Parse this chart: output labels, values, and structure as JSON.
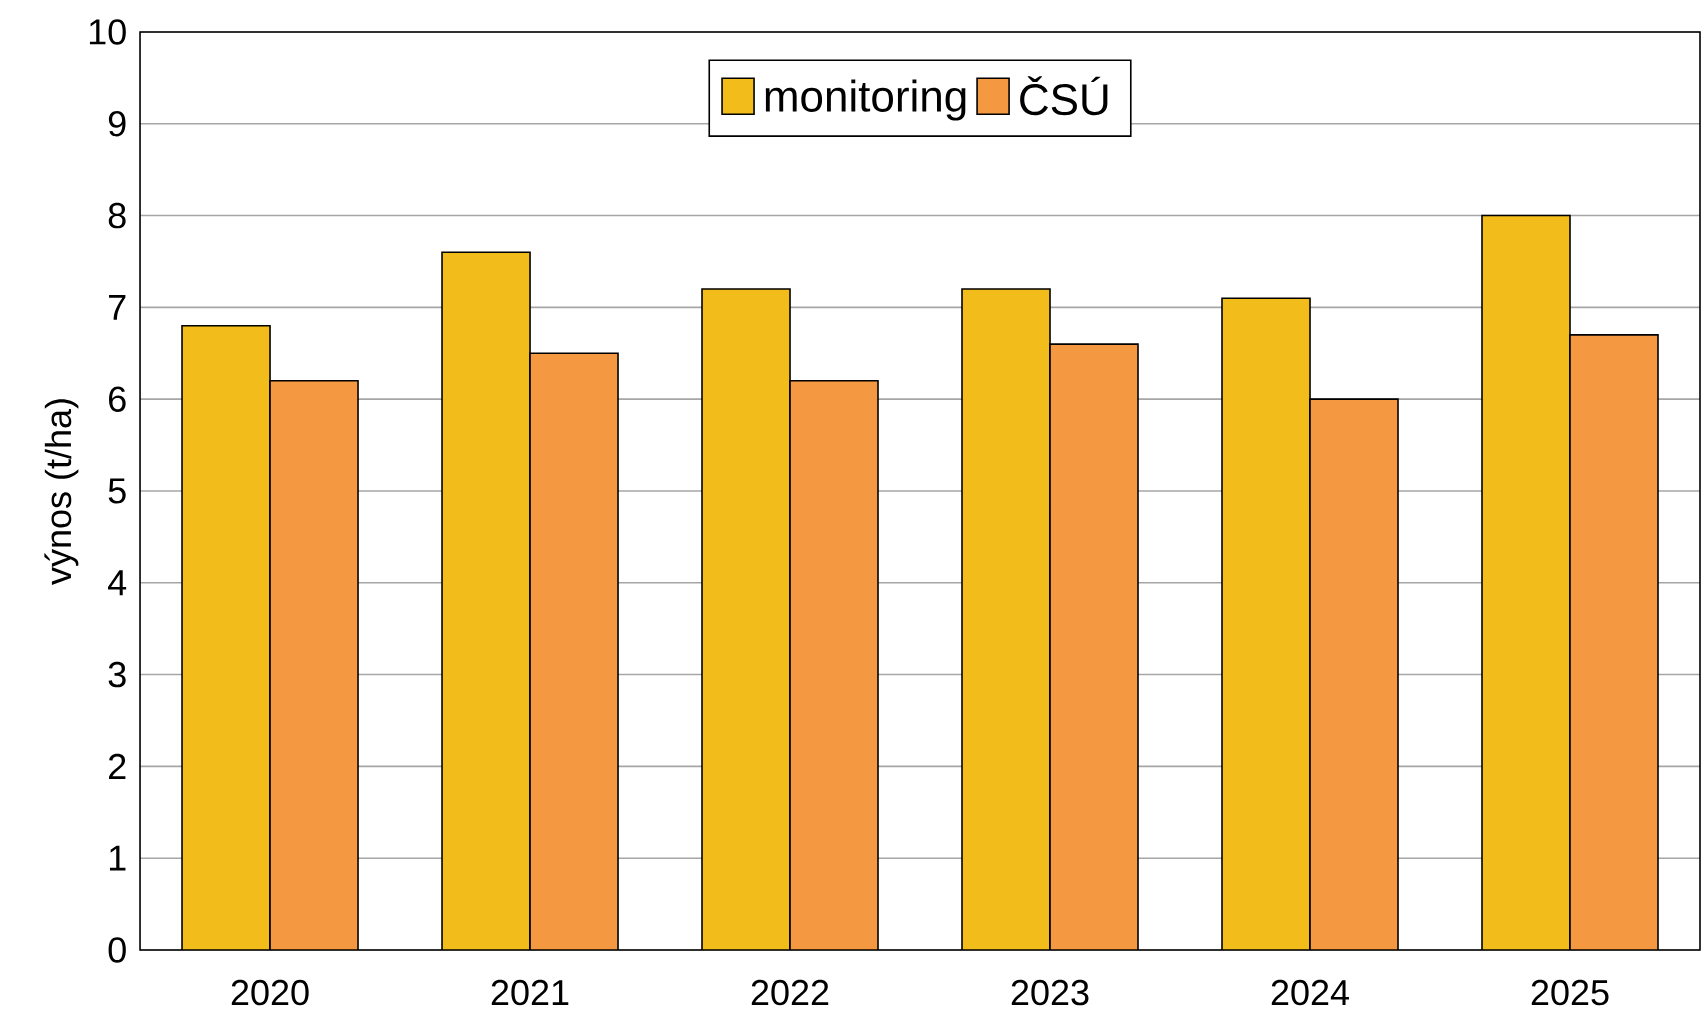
{
  "chart_data": {
    "type": "bar",
    "ylabel": "výnos (t/ha)",
    "categories": [
      "2020",
      "2021",
      "2022",
      "2023",
      "2024",
      "2025"
    ],
    "series": [
      {
        "name": "monitoring",
        "color": "#f2bc1b",
        "values": [
          6.8,
          7.6,
          7.2,
          7.2,
          7.1,
          8.0
        ]
      },
      {
        "name": "ČSÚ",
        "color": "#f59842",
        "values": [
          6.2,
          6.5,
          6.2,
          6.6,
          6.0,
          6.7
        ]
      }
    ],
    "ylim": [
      0,
      10
    ],
    "yticks": [
      0,
      1,
      2,
      3,
      4,
      5,
      6,
      7,
      8,
      9,
      10
    ],
    "grid": "y",
    "legend": "top"
  }
}
